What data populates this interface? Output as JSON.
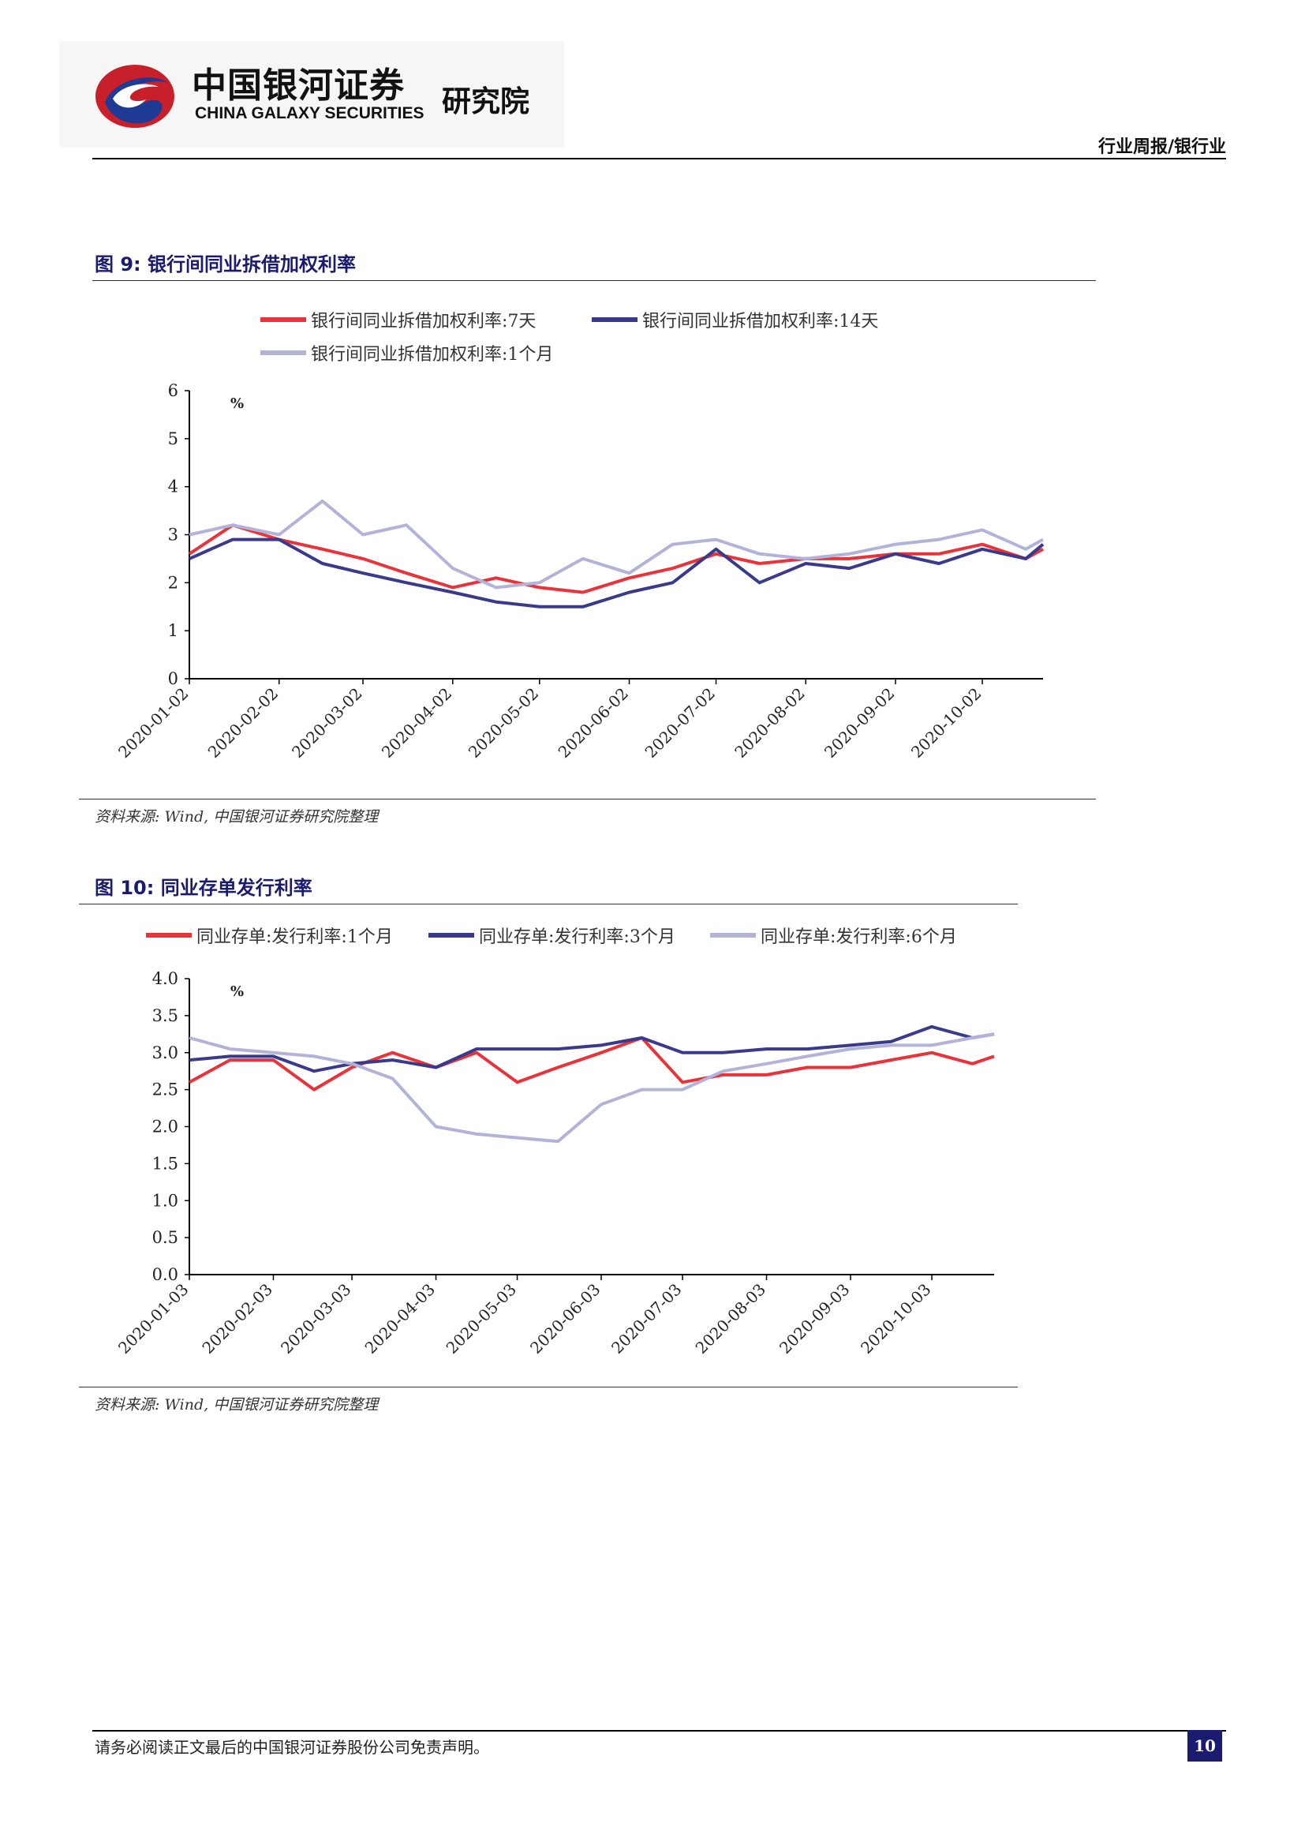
{
  "header": {
    "logo_cn": "中国银河证券",
    "logo_en": "CHINA GALAXY SECURITIES",
    "logo_institute": "研究院",
    "report_tag": "行业周报/银行业"
  },
  "figures": [
    {
      "title": "图 9: 银行间同业拆借加权利率",
      "source": "资料来源: Wind, 中国银河证券研究院整理",
      "legend": [
        "银行间同业拆借加权利率:7天",
        "银行间同业拆借加权利率:14天",
        "银行间同业拆借加权利率:1个月"
      ]
    },
    {
      "title": "图 10: 同业存单发行利率",
      "source": "资料来源: Wind, 中国银河证券研究院整理",
      "legend": [
        "同业存单:发行利率:1个月",
        "同业存单:发行利率:3个月",
        "同业存单:发行利率:6个月"
      ]
    }
  ],
  "chart_data": [
    {
      "type": "line",
      "unit_label": "%",
      "ylim": [
        0,
        6
      ],
      "yticks": [
        "0",
        "1",
        "2",
        "3",
        "4",
        "5",
        "6"
      ],
      "x": [
        "2020-01-02",
        "2020-01-17",
        "2020-02-02",
        "2020-02-17",
        "2020-03-02",
        "2020-03-17",
        "2020-04-02",
        "2020-04-17",
        "2020-05-02",
        "2020-05-17",
        "2020-06-02",
        "2020-06-17",
        "2020-07-02",
        "2020-07-17",
        "2020-08-02",
        "2020-08-17",
        "2020-09-02",
        "2020-09-17",
        "2020-10-02",
        "2020-10-17",
        "2020-10-23"
      ],
      "xticks": [
        "2020-01-02",
        "2020-02-02",
        "2020-03-02",
        "2020-04-02",
        "2020-05-02",
        "2020-06-02",
        "2020-07-02",
        "2020-08-02",
        "2020-09-02",
        "2020-10-02"
      ],
      "series": [
        {
          "name": "银行间同业拆借加权利率:7天",
          "color": "#e8333a",
          "values": [
            2.6,
            3.2,
            2.9,
            2.7,
            2.5,
            2.2,
            1.9,
            2.1,
            1.9,
            1.8,
            2.1,
            2.3,
            2.6,
            2.4,
            2.5,
            2.5,
            2.6,
            2.6,
            2.8,
            2.5,
            2.7
          ]
        },
        {
          "name": "银行间同业拆借加权利率:14天",
          "color": "#3a3a8c",
          "values": [
            2.5,
            2.9,
            2.9,
            2.4,
            2.2,
            2.0,
            1.8,
            1.6,
            1.5,
            1.5,
            1.8,
            2.0,
            2.7,
            2.0,
            2.4,
            2.3,
            2.6,
            2.4,
            2.7,
            2.5,
            2.8
          ]
        },
        {
          "name": "银行间同业拆借加权利率:1个月",
          "color": "#b3b3d9",
          "values": [
            3.0,
            3.2,
            3.0,
            3.7,
            3.0,
            3.2,
            2.3,
            1.9,
            2.0,
            2.5,
            2.2,
            2.8,
            2.9,
            2.6,
            2.5,
            2.6,
            2.8,
            2.9,
            3.1,
            2.7,
            2.9
          ]
        }
      ]
    },
    {
      "type": "line",
      "unit_label": "%",
      "ylim": [
        0,
        4
      ],
      "yticks": [
        "0.0",
        "0.5",
        "1.0",
        "1.5",
        "2.0",
        "2.5",
        "3.0",
        "3.5",
        "4.0"
      ],
      "x": [
        "2020-01-03",
        "2020-01-18",
        "2020-02-03",
        "2020-02-18",
        "2020-03-03",
        "2020-03-18",
        "2020-04-03",
        "2020-04-18",
        "2020-05-03",
        "2020-05-18",
        "2020-06-03",
        "2020-06-18",
        "2020-07-03",
        "2020-07-18",
        "2020-08-03",
        "2020-08-18",
        "2020-09-03",
        "2020-09-18",
        "2020-10-03",
        "2020-10-18",
        "2020-10-26"
      ],
      "xticks": [
        "2020-01-03",
        "2020-02-03",
        "2020-03-03",
        "2020-04-03",
        "2020-05-03",
        "2020-06-03",
        "2020-07-03",
        "2020-08-03",
        "2020-09-03",
        "2020-10-03"
      ],
      "series": [
        {
          "name": "同业存单:发行利率:1个月",
          "color": "#e8333a",
          "values": [
            2.6,
            2.9,
            2.9,
            2.5,
            2.8,
            3.0,
            2.8,
            3.0,
            2.6,
            2.8,
            3.0,
            3.2,
            2.6,
            2.7,
            2.7,
            2.8,
            2.8,
            2.9,
            3.0,
            2.85,
            2.95
          ]
        },
        {
          "name": "同业存单:发行利率:3个月",
          "color": "#3a3a8c",
          "values": [
            2.9,
            2.95,
            2.95,
            2.75,
            2.85,
            2.9,
            2.8,
            3.05,
            3.05,
            3.05,
            3.1,
            3.2,
            3.0,
            3.0,
            3.05,
            3.05,
            3.1,
            3.15,
            3.35,
            3.2,
            3.25
          ]
        },
        {
          "name": "同业存单:发行利率:6个月",
          "color": "#b3b3d9",
          "values": [
            3.2,
            3.05,
            3.0,
            2.95,
            2.85,
            2.65,
            2.0,
            1.9,
            1.85,
            1.8,
            2.3,
            2.5,
            2.5,
            2.75,
            2.85,
            2.95,
            3.05,
            3.1,
            3.1,
            3.2,
            3.25
          ]
        }
      ]
    }
  ],
  "footer": {
    "disclaimer": "请务必阅读正文最后的中国银河证券股份公司免责声明。",
    "page_number": "10"
  }
}
